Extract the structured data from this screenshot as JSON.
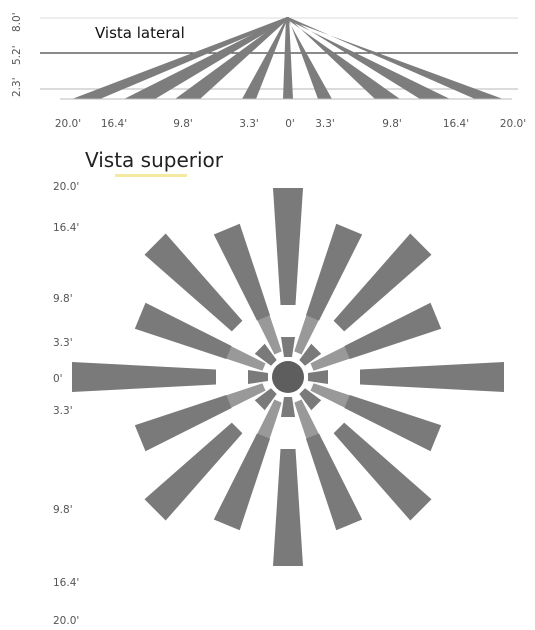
{
  "side_view": {
    "title": "Vista lateral",
    "height_labels": [
      "8.0'",
      "5.2'",
      "2.3'"
    ],
    "distance_labels": [
      "20.0'",
      "16.4'",
      "9.8'",
      "3.3'",
      "0'",
      "3.3'",
      "9.8'",
      "16.4'",
      "20.0'"
    ]
  },
  "top_view": {
    "title": "Vista superior",
    "distance_labels": [
      "20.0'",
      "16.4'",
      "9.8'",
      "3.3'",
      "0'",
      "3.3'",
      "9.8'",
      "16.4'",
      "20.0'"
    ]
  },
  "colors": {
    "zone_dark": "#7a7a7a",
    "zone_light": "#999999",
    "center": "#5e5e5e",
    "floor_line": "#cfcfcf",
    "mount_line": "#444444",
    "accent": "#f4e9a0"
  }
}
